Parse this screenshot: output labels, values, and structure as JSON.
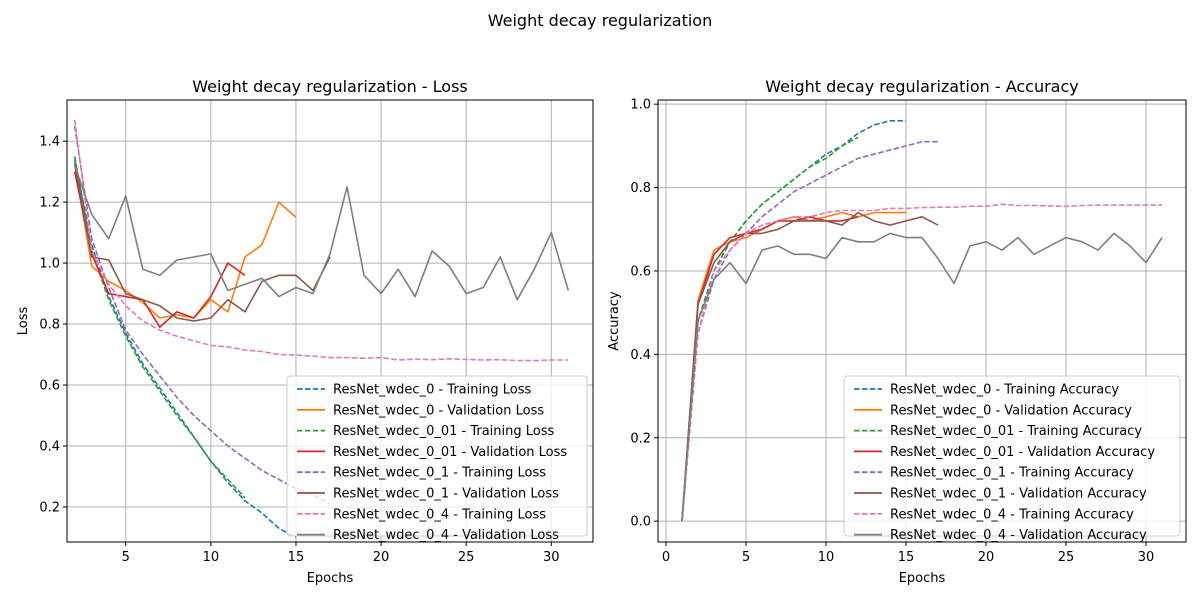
{
  "figure_title": "Weight decay regularization",
  "chart_data": [
    {
      "type": "line",
      "title": "Weight decay regularization - Loss",
      "xlabel": "Epochs",
      "ylabel": "Loss",
      "xlim": [
        1.55,
        32.45
      ],
      "ylim": [
        0.085,
        1.535
      ],
      "xticks": [
        5,
        10,
        15,
        20,
        25,
        30
      ],
      "yticks": [
        0.2,
        0.4,
        0.6,
        0.8,
        1.0,
        1.2,
        1.4
      ],
      "xtick_labels": [
        "5",
        "10",
        "15",
        "20",
        "25",
        "30"
      ],
      "ytick_labels": [
        "0.2",
        "0.4",
        "0.6",
        "0.8",
        "1.0",
        "1.2",
        "1.4"
      ],
      "grid": true,
      "legend_position": "lower-right",
      "series": [
        {
          "name": "ResNet_wdec_0 - Training Loss",
          "color": "#1f77b4",
          "dash": true,
          "x": [
            2,
            3,
            4,
            5,
            6,
            7,
            8,
            9,
            10,
            11,
            12,
            13,
            14,
            15
          ],
          "y": [
            1.34,
            1.06,
            0.89,
            0.77,
            0.67,
            0.59,
            0.51,
            0.43,
            0.35,
            0.28,
            0.22,
            0.18,
            0.13,
            0.1
          ]
        },
        {
          "name": "ResNet_wdec_0 - Validation Loss",
          "color": "#ff7f0e",
          "dash": false,
          "x": [
            2,
            3,
            4,
            5,
            6,
            7,
            8,
            9,
            10,
            11,
            12,
            13,
            14,
            15
          ],
          "y": [
            1.32,
            0.99,
            0.94,
            0.91,
            0.87,
            0.82,
            0.83,
            0.82,
            0.88,
            0.84,
            1.02,
            1.06,
            1.2,
            1.15
          ]
        },
        {
          "name": "ResNet_wdec_0_01 - Training Loss",
          "color": "#2ca02c",
          "dash": true,
          "x": [
            2,
            3,
            4,
            5,
            6,
            7,
            8,
            9,
            10,
            11,
            12
          ],
          "y": [
            1.35,
            1.04,
            0.88,
            0.76,
            0.66,
            0.58,
            0.5,
            0.43,
            0.35,
            0.29,
            0.23
          ]
        },
        {
          "name": "ResNet_wdec_0_01 - Validation Loss",
          "color": "#d62728",
          "dash": false,
          "x": [
            2,
            3,
            4,
            5,
            6,
            7,
            8,
            9,
            10,
            11,
            12
          ],
          "y": [
            1.3,
            1.03,
            0.9,
            0.89,
            0.88,
            0.79,
            0.84,
            0.82,
            0.89,
            1.0,
            0.96
          ]
        },
        {
          "name": "ResNet_wdec_0_1 - Training Loss",
          "color": "#9467bd",
          "dash": true,
          "x": [
            2,
            3,
            4,
            5,
            6,
            7,
            8,
            9,
            10,
            11,
            12,
            13,
            14,
            15,
            16,
            17
          ],
          "y": [
            1.45,
            1.08,
            0.92,
            0.78,
            0.7,
            0.63,
            0.56,
            0.5,
            0.45,
            0.4,
            0.36,
            0.32,
            0.29,
            0.26,
            0.24,
            0.21
          ]
        },
        {
          "name": "ResNet_wdec_0_1 - Validation Loss",
          "color": "#8c564b",
          "dash": false,
          "x": [
            2,
            3,
            4,
            5,
            6,
            7,
            8,
            9,
            10,
            11,
            12,
            13,
            14,
            15,
            16,
            17
          ],
          "y": [
            1.33,
            1.02,
            1.01,
            0.9,
            0.88,
            0.86,
            0.82,
            0.81,
            0.82,
            0.88,
            0.84,
            0.94,
            0.96,
            0.96,
            0.91,
            1.02
          ]
        },
        {
          "name": "ResNet_wdec_0_4 - Training Loss",
          "color": "#e377c2",
          "dash": true,
          "x": [
            2,
            3,
            4,
            5,
            6,
            7,
            8,
            9,
            10,
            11,
            12,
            13,
            14,
            15,
            16,
            17,
            18,
            19,
            20,
            21,
            22,
            23,
            24,
            25,
            26,
            27,
            28,
            29,
            30,
            31
          ],
          "y": [
            1.47,
            1.04,
            0.93,
            0.86,
            0.81,
            0.78,
            0.76,
            0.745,
            0.73,
            0.725,
            0.715,
            0.71,
            0.7,
            0.698,
            0.695,
            0.69,
            0.69,
            0.688,
            0.69,
            0.682,
            0.685,
            0.683,
            0.686,
            0.684,
            0.682,
            0.683,
            0.68,
            0.68,
            0.682,
            0.682
          ]
        },
        {
          "name": "ResNet_wdec_0_4 - Validation Loss",
          "color": "#7f7f7f",
          "dash": false,
          "x": [
            2,
            3,
            4,
            5,
            6,
            7,
            8,
            9,
            10,
            11,
            12,
            13,
            14,
            15,
            16,
            17,
            18,
            19,
            20,
            21,
            22,
            23,
            24,
            25,
            26,
            27,
            28,
            29,
            30,
            31
          ],
          "y": [
            1.32,
            1.16,
            1.08,
            1.22,
            0.98,
            0.96,
            1.01,
            1.02,
            1.03,
            0.91,
            0.93,
            0.95,
            0.89,
            0.92,
            0.9,
            1.03,
            1.25,
            0.96,
            0.9,
            0.98,
            0.89,
            1.04,
            0.99,
            0.9,
            0.92,
            1.02,
            0.88,
            0.98,
            1.1,
            0.91
          ]
        }
      ]
    },
    {
      "type": "line",
      "title": "Weight decay regularization - Accuracy",
      "xlabel": "Epochs",
      "ylabel": "Accuracy",
      "xlim": [
        -0.5,
        32.5
      ],
      "ylim": [
        -0.05,
        1.01
      ],
      "xticks": [
        0,
        5,
        10,
        15,
        20,
        25,
        30
      ],
      "yticks": [
        0.0,
        0.2,
        0.4,
        0.6,
        0.8,
        1.0
      ],
      "xtick_labels": [
        "0",
        "5",
        "10",
        "15",
        "20",
        "25",
        "30"
      ],
      "ytick_labels": [
        "0.0",
        "0.2",
        "0.4",
        "0.6",
        "0.8",
        "1.0"
      ],
      "grid": true,
      "legend_position": "lower-right",
      "series": [
        {
          "name": "ResNet_wdec_0 - Training Accuracy",
          "color": "#1f77b4",
          "dash": true,
          "x": [
            1,
            2,
            3,
            4,
            5,
            6,
            7,
            8,
            9,
            10,
            11,
            12,
            13,
            14,
            15
          ],
          "y": [
            0.0,
            0.48,
            0.6,
            0.67,
            0.72,
            0.76,
            0.79,
            0.82,
            0.85,
            0.88,
            0.9,
            0.93,
            0.95,
            0.96,
            0.96
          ]
        },
        {
          "name": "ResNet_wdec_0 - Validation Accuracy",
          "color": "#ff7f0e",
          "dash": false,
          "x": [
            1,
            2,
            3,
            4,
            5,
            6,
            7,
            8,
            9,
            10,
            11,
            12,
            13,
            14,
            15
          ],
          "y": [
            0.0,
            0.53,
            0.65,
            0.67,
            0.68,
            0.7,
            0.72,
            0.73,
            0.72,
            0.73,
            0.74,
            0.73,
            0.74,
            0.74,
            0.74
          ]
        },
        {
          "name": "ResNet_wdec_0_01 - Training Accuracy",
          "color": "#2ca02c",
          "dash": true,
          "x": [
            1,
            2,
            3,
            4,
            5,
            6,
            7,
            8,
            9,
            10,
            11,
            12
          ],
          "y": [
            0.0,
            0.48,
            0.6,
            0.67,
            0.72,
            0.76,
            0.79,
            0.82,
            0.85,
            0.87,
            0.9,
            0.92
          ]
        },
        {
          "name": "ResNet_wdec_0_01 - Validation Accuracy",
          "color": "#d62728",
          "dash": false,
          "x": [
            1,
            2,
            3,
            4,
            5,
            6,
            7,
            8,
            9,
            10,
            11,
            12
          ],
          "y": [
            0.0,
            0.52,
            0.64,
            0.68,
            0.69,
            0.7,
            0.72,
            0.72,
            0.73,
            0.72,
            0.72,
            0.73
          ]
        },
        {
          "name": "ResNet_wdec_0_1 - Training Accuracy",
          "color": "#9467bd",
          "dash": true,
          "x": [
            1,
            2,
            3,
            4,
            5,
            6,
            7,
            8,
            9,
            10,
            11,
            12,
            13,
            14,
            15,
            16,
            17
          ],
          "y": [
            0.0,
            0.45,
            0.58,
            0.65,
            0.69,
            0.73,
            0.76,
            0.79,
            0.81,
            0.83,
            0.85,
            0.87,
            0.88,
            0.89,
            0.9,
            0.91,
            0.91
          ]
        },
        {
          "name": "ResNet_wdec_0_1 - Validation Accuracy",
          "color": "#8c564b",
          "dash": false,
          "x": [
            1,
            2,
            3,
            4,
            5,
            6,
            7,
            8,
            9,
            10,
            11,
            12,
            13,
            14,
            15,
            16,
            17
          ],
          "y": [
            0.0,
            0.52,
            0.62,
            0.67,
            0.69,
            0.69,
            0.7,
            0.72,
            0.72,
            0.72,
            0.71,
            0.74,
            0.72,
            0.71,
            0.72,
            0.73,
            0.71
          ]
        },
        {
          "name": "ResNet_wdec_0_4 - Training Accuracy",
          "color": "#e377c2",
          "dash": true,
          "x": [
            1,
            2,
            3,
            4,
            5,
            6,
            7,
            8,
            9,
            10,
            11,
            12,
            13,
            14,
            15,
            16,
            17,
            18,
            19,
            20,
            21,
            22,
            23,
            24,
            25,
            26,
            27,
            28,
            29,
            30,
            31
          ],
          "y": [
            0.0,
            0.45,
            0.6,
            0.65,
            0.69,
            0.71,
            0.72,
            0.73,
            0.73,
            0.74,
            0.745,
            0.745,
            0.745,
            0.75,
            0.75,
            0.752,
            0.753,
            0.753,
            0.755,
            0.755,
            0.76,
            0.757,
            0.757,
            0.756,
            0.755,
            0.757,
            0.758,
            0.758,
            0.758,
            0.758,
            0.758
          ]
        },
        {
          "name": "ResNet_wdec_0_4 - Validation Accuracy",
          "color": "#7f7f7f",
          "dash": false,
          "x": [
            1,
            2,
            3,
            4,
            5,
            6,
            7,
            8,
            9,
            10,
            11,
            12,
            13,
            14,
            15,
            16,
            17,
            18,
            19,
            20,
            21,
            22,
            23,
            24,
            25,
            26,
            27,
            28,
            29,
            30,
            31
          ],
          "y": [
            0.0,
            0.48,
            0.58,
            0.62,
            0.57,
            0.65,
            0.66,
            0.64,
            0.64,
            0.63,
            0.68,
            0.67,
            0.67,
            0.69,
            0.68,
            0.68,
            0.63,
            0.57,
            0.66,
            0.67,
            0.65,
            0.68,
            0.64,
            0.66,
            0.68,
            0.67,
            0.65,
            0.69,
            0.66,
            0.62,
            0.68
          ]
        }
      ]
    }
  ]
}
